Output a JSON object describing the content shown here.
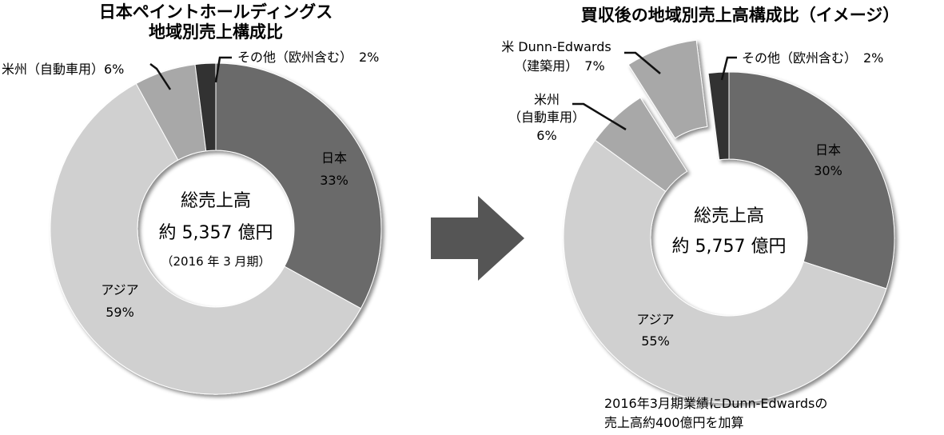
{
  "charts": {
    "left": {
      "title_line1": "日本ペイントホールディングス",
      "title_line2": "地域別売上構成比",
      "center_line1": "総売上高",
      "center_line2": "約 5,357 億円",
      "center_line3": "（2016 年 3 月期）"
    },
    "right": {
      "title": "買収後の地域別売上高構成比（イメージ）",
      "center_line1": "総売上高",
      "center_line2": "約 5,757 億円",
      "footnote_line1": "2016年3月期業績にDunn-Edwardsの",
      "footnote_line2": "売上高約400億円を加算"
    }
  },
  "chart_data": [
    {
      "type": "pie",
      "categories": [
        "日本",
        "アジア",
        "米州（自動車用）",
        "その他（欧州含む）"
      ],
      "values": [
        33,
        59,
        6,
        2
      ],
      "unit": "%",
      "colors": [
        "#6a6a6a",
        "#d0d0d0",
        "#a8a8a8",
        "#333333"
      ],
      "labels": {
        "japan": "日本",
        "japan_pct": "33%",
        "asia": "アジア",
        "asia_pct": "59%",
        "americas": "米州（自動車用）6%",
        "other": "その他（欧州含む）　2%"
      }
    },
    {
      "type": "pie",
      "categories": [
        "日本",
        "アジア",
        "米州（自動車用）",
        "米 Dunn-Edwards（建築用）",
        "その他（欧州含む）"
      ],
      "values": [
        30,
        55,
        6,
        7,
        2
      ],
      "unit": "%",
      "colors": [
        "#6a6a6a",
        "#d0d0d0",
        "#a8a8a8",
        "#a8a8a8",
        "#333333"
      ],
      "exploded": "米 Dunn-Edwards（建築用）",
      "labels": {
        "japan": "日本",
        "japan_pct": "30%",
        "asia": "アジア",
        "asia_pct": "55%",
        "americas_line1": "米州",
        "americas_line2": "（自動車用）",
        "americas_pct": "6%",
        "dunn_line1": "米 Dunn-Edwards",
        "dunn_line2": "（建築用）　7%",
        "other": "その他（欧州含む）　2%"
      }
    }
  ],
  "arrow": {
    "color": "#555555"
  }
}
